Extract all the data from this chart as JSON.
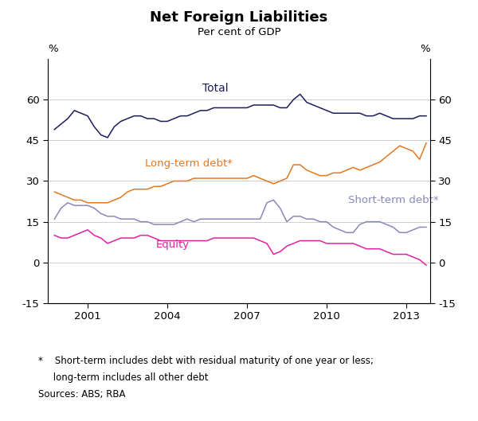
{
  "title": "Net Foreign Liabilities",
  "subtitle": "Per cent of GDP",
  "footnote_line1": "*    Short-term includes debt with residual maturity of one year or less;",
  "footnote_line2": "     long-term includes all other debt",
  "sources": "Sources: ABS; RBA",
  "xlim": [
    1999.5,
    2013.9
  ],
  "ylim": [
    -15,
    75
  ],
  "yticks": [
    -15,
    0,
    15,
    30,
    45,
    60
  ],
  "xticks": [
    2001,
    2004,
    2007,
    2010,
    2013
  ],
  "background_color": "#ffffff",
  "grid_color": "#c8c8c8",
  "colors": {
    "total": "#1c1c5c",
    "longterm": "#e07820",
    "shortterm": "#8888bb",
    "equity": "#e020a0"
  },
  "total_x": [
    1999.75,
    2000.0,
    2000.25,
    2000.5,
    2000.75,
    2001.0,
    2001.25,
    2001.5,
    2001.75,
    2002.0,
    2002.25,
    2002.5,
    2002.75,
    2003.0,
    2003.25,
    2003.5,
    2003.75,
    2004.0,
    2004.25,
    2004.5,
    2004.75,
    2005.0,
    2005.25,
    2005.5,
    2005.75,
    2006.0,
    2006.25,
    2006.5,
    2006.75,
    2007.0,
    2007.25,
    2007.5,
    2007.75,
    2008.0,
    2008.25,
    2008.5,
    2008.75,
    2009.0,
    2009.25,
    2009.5,
    2009.75,
    2010.0,
    2010.25,
    2010.5,
    2010.75,
    2011.0,
    2011.25,
    2011.5,
    2011.75,
    2012.0,
    2012.25,
    2012.5,
    2012.75,
    2013.0,
    2013.25,
    2013.5,
    2013.75
  ],
  "total_y": [
    49,
    51,
    53,
    56,
    55,
    54,
    50,
    47,
    46,
    50,
    52,
    53,
    54,
    54,
    53,
    53,
    52,
    52,
    53,
    54,
    54,
    55,
    56,
    56,
    57,
    57,
    57,
    57,
    57,
    57,
    58,
    58,
    58,
    58,
    57,
    57,
    60,
    62,
    59,
    58,
    57,
    56,
    55,
    55,
    55,
    55,
    55,
    54,
    54,
    55,
    54,
    53,
    53,
    53,
    53,
    54,
    54
  ],
  "longterm_x": [
    1999.75,
    2000.0,
    2000.25,
    2000.5,
    2000.75,
    2001.0,
    2001.25,
    2001.5,
    2001.75,
    2002.0,
    2002.25,
    2002.5,
    2002.75,
    2003.0,
    2003.25,
    2003.5,
    2003.75,
    2004.0,
    2004.25,
    2004.5,
    2004.75,
    2005.0,
    2005.25,
    2005.5,
    2005.75,
    2006.0,
    2006.25,
    2006.5,
    2006.75,
    2007.0,
    2007.25,
    2007.5,
    2007.75,
    2008.0,
    2008.25,
    2008.5,
    2008.75,
    2009.0,
    2009.25,
    2009.5,
    2009.75,
    2010.0,
    2010.25,
    2010.5,
    2010.75,
    2011.0,
    2011.25,
    2011.5,
    2011.75,
    2012.0,
    2012.25,
    2012.5,
    2012.75,
    2013.0,
    2013.25,
    2013.5,
    2013.75
  ],
  "longterm_y": [
    26,
    25,
    24,
    23,
    23,
    22,
    22,
    22,
    22,
    23,
    24,
    26,
    27,
    27,
    27,
    28,
    28,
    29,
    30,
    30,
    30,
    31,
    31,
    31,
    31,
    31,
    31,
    31,
    31,
    31,
    32,
    31,
    30,
    29,
    30,
    31,
    36,
    36,
    34,
    33,
    32,
    32,
    33,
    33,
    34,
    35,
    34,
    35,
    36,
    37,
    39,
    41,
    43,
    42,
    41,
    38,
    44
  ],
  "shortterm_x": [
    1999.75,
    2000.0,
    2000.25,
    2000.5,
    2000.75,
    2001.0,
    2001.25,
    2001.5,
    2001.75,
    2002.0,
    2002.25,
    2002.5,
    2002.75,
    2003.0,
    2003.25,
    2003.5,
    2003.75,
    2004.0,
    2004.25,
    2004.5,
    2004.75,
    2005.0,
    2005.25,
    2005.5,
    2005.75,
    2006.0,
    2006.25,
    2006.5,
    2006.75,
    2007.0,
    2007.25,
    2007.5,
    2007.75,
    2008.0,
    2008.25,
    2008.5,
    2008.75,
    2009.0,
    2009.25,
    2009.5,
    2009.75,
    2010.0,
    2010.25,
    2010.5,
    2010.75,
    2011.0,
    2011.25,
    2011.5,
    2011.75,
    2012.0,
    2012.25,
    2012.5,
    2012.75,
    2013.0,
    2013.25,
    2013.5,
    2013.75
  ],
  "shortterm_y": [
    16,
    20,
    22,
    21,
    21,
    21,
    20,
    18,
    17,
    17,
    16,
    16,
    16,
    15,
    15,
    14,
    14,
    14,
    14,
    15,
    16,
    15,
    16,
    16,
    16,
    16,
    16,
    16,
    16,
    16,
    16,
    16,
    22,
    23,
    20,
    15,
    17,
    17,
    16,
    16,
    15,
    15,
    13,
    12,
    11,
    11,
    14,
    15,
    15,
    15,
    14,
    13,
    11,
    11,
    12,
    13,
    13
  ],
  "equity_x": [
    1999.75,
    2000.0,
    2000.25,
    2000.5,
    2000.75,
    2001.0,
    2001.25,
    2001.5,
    2001.75,
    2002.0,
    2002.25,
    2002.5,
    2002.75,
    2003.0,
    2003.25,
    2003.5,
    2003.75,
    2004.0,
    2004.25,
    2004.5,
    2004.75,
    2005.0,
    2005.25,
    2005.5,
    2005.75,
    2006.0,
    2006.25,
    2006.5,
    2006.75,
    2007.0,
    2007.25,
    2007.5,
    2007.75,
    2008.0,
    2008.25,
    2008.5,
    2008.75,
    2009.0,
    2009.25,
    2009.5,
    2009.75,
    2010.0,
    2010.25,
    2010.5,
    2010.75,
    2011.0,
    2011.25,
    2011.5,
    2011.75,
    2012.0,
    2012.25,
    2012.5,
    2012.75,
    2013.0,
    2013.25,
    2013.5,
    2013.75
  ],
  "equity_y": [
    10,
    9,
    9,
    10,
    11,
    12,
    10,
    9,
    7,
    8,
    9,
    9,
    9,
    10,
    10,
    9,
    8,
    8,
    8,
    8,
    8,
    8,
    8,
    8,
    9,
    9,
    9,
    9,
    9,
    9,
    9,
    8,
    7,
    3,
    4,
    6,
    7,
    8,
    8,
    8,
    8,
    7,
    7,
    7,
    7,
    7,
    6,
    5,
    5,
    5,
    4,
    3,
    3,
    3,
    2,
    1,
    -1
  ]
}
